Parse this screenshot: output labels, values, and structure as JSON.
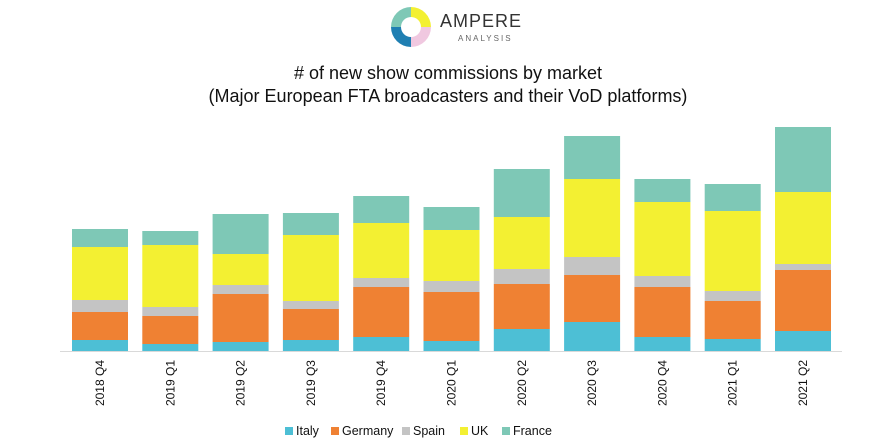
{
  "brand": {
    "name": "AMPERE",
    "sub": "ANALYSIS"
  },
  "colors": {
    "Italy": "#4dbfd5",
    "Germany": "#ef8133",
    "Spain": "#c4c4c4",
    "UK": "#f3f032",
    "France": "#7ec8b6"
  },
  "chart_data": {
    "type": "bar",
    "stacked": true,
    "title": "# of new show commissions by market",
    "subtitle": "(Major European FTA broadcasters and their VoD platforms)",
    "xlabel": "",
    "ylabel": "",
    "grid": false,
    "legend_position": "bottom",
    "ylim": [
      0,
      230
    ],
    "categories": [
      "2018 Q4",
      "2019 Q1",
      "2019 Q2",
      "2019 Q3",
      "2019 Q4",
      "2020 Q1",
      "2020 Q2",
      "2020 Q3",
      "2020 Q4",
      "2021 Q1",
      "2021 Q2"
    ],
    "series": [
      {
        "name": "Italy",
        "values": [
          11,
          7,
          9,
          11,
          14,
          10,
          22,
          29,
          14,
          12,
          20
        ]
      },
      {
        "name": "Germany",
        "values": [
          28,
          28,
          48,
          31,
          50,
          49,
          45,
          47,
          50,
          38,
          61
        ]
      },
      {
        "name": "Spain",
        "values": [
          12,
          9,
          9,
          8,
          9,
          11,
          15,
          18,
          11,
          10,
          6
        ]
      },
      {
        "name": "UK",
        "values": [
          53,
          62,
          31,
          66,
          55,
          51,
          52,
          78,
          74,
          80,
          72
        ]
      },
      {
        "name": "France",
        "values": [
          18,
          14,
          40,
          22,
          27,
          23,
          48,
          43,
          23,
          27,
          65
        ]
      }
    ]
  }
}
